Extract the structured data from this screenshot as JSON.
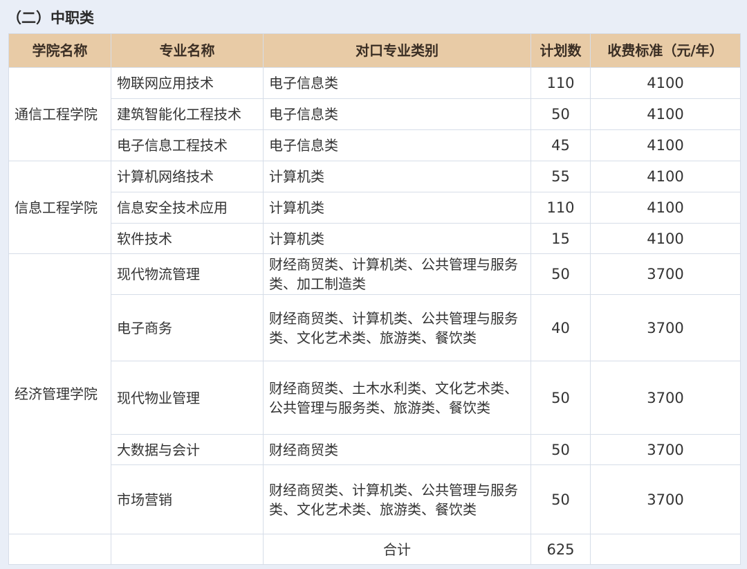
{
  "title": "（二）中职类",
  "headers": [
    "学院名称",
    "专业名称",
    "对口专业类别",
    "计划数",
    "收费标准（元/年）"
  ],
  "colleges": [
    "通信工程学院",
    "信息工程学院",
    "经济管理学院"
  ],
  "rows": [
    {
      "major": "物联网应用技术",
      "category": "电子信息类",
      "plan": "110",
      "fee": "4100"
    },
    {
      "major": "建筑智能化工程技术",
      "category": "电子信息类",
      "plan": "50",
      "fee": "4100"
    },
    {
      "major": "电子信息工程技术",
      "category": "电子信息类",
      "plan": "45",
      "fee": "4100"
    },
    {
      "major": "计算机网络技术",
      "category": "计算机类",
      "plan": "55",
      "fee": "4100"
    },
    {
      "major": "信息安全技术应用",
      "category": "计算机类",
      "plan": "110",
      "fee": "4100"
    },
    {
      "major": "软件技术",
      "category": "计算机类",
      "plan": "15",
      "fee": "4100"
    },
    {
      "major": "现代物流管理",
      "category": "财经商贸类、计算机类、公共管理与服务类、加工制造类",
      "plan": "50",
      "fee": "3700"
    },
    {
      "major": "电子商务",
      "category": "财经商贸类、计算机类、公共管理与服务类、文化艺术类、旅游类、餐饮类",
      "plan": "40",
      "fee": "3700"
    },
    {
      "major": "现代物业管理",
      "category": "财经商贸类、土木水利类、文化艺术类、公共管理与服务类、旅游类、餐饮类",
      "plan": "50",
      "fee": "3700"
    },
    {
      "major": "大数据与会计",
      "category": "财经商贸类",
      "plan": "50",
      "fee": "3700"
    },
    {
      "major": "市场营销",
      "category": "财经商贸类、计算机类、公共管理与服务类、文化艺术类、旅游类、餐饮类",
      "plan": "50",
      "fee": "3700"
    }
  ],
  "total": {
    "label": "合计",
    "plan": "625"
  }
}
